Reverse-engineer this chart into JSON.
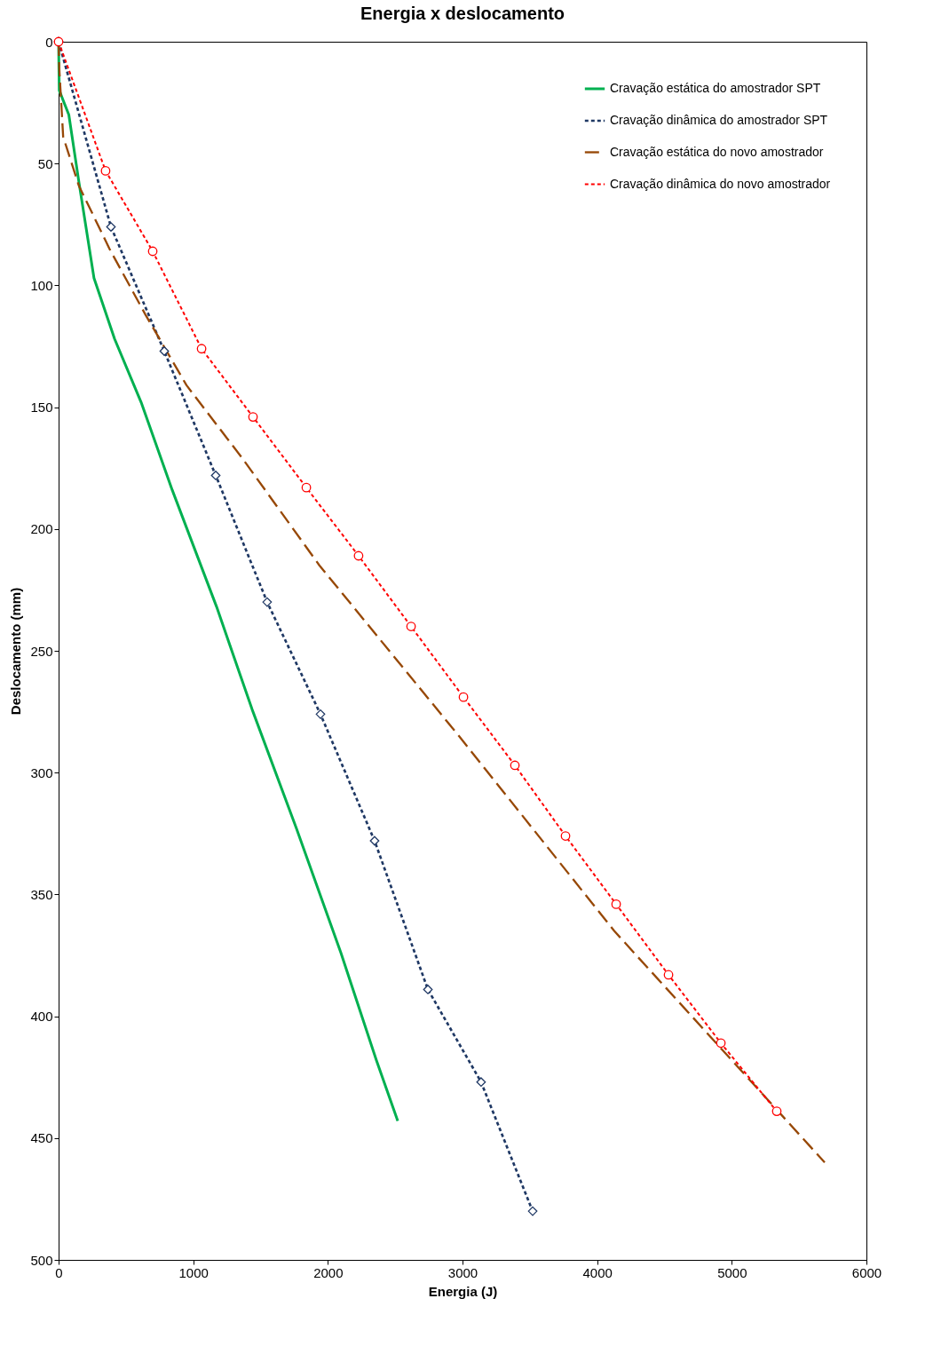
{
  "chart_data": {
    "type": "line",
    "title": "Energia x deslocamento",
    "xlabel": "Energia (J)",
    "ylabel": "Deslocamento (mm)",
    "xlim": [
      0,
      6000
    ],
    "xticks": [
      0,
      1000,
      2000,
      3000,
      4000,
      5000,
      6000
    ],
    "ylim": [
      500,
      0
    ],
    "yticks": [
      0,
      50,
      100,
      150,
      200,
      250,
      300,
      350,
      400,
      450,
      500
    ],
    "grid": false,
    "legend": "top right",
    "series": [
      {
        "name": "Cravação estática do amostrador SPT",
        "color": "#00b050",
        "marker": "none",
        "line_style": "solid",
        "x": [
          0,
          5,
          76,
          152,
          263,
          416,
          613,
          844,
          1174,
          1437,
          1767,
          2097,
          2360,
          2519
        ],
        "values": [
          0,
          20,
          30,
          58,
          97,
          122,
          148,
          184,
          232,
          274,
          323,
          374,
          418,
          443
        ]
      },
      {
        "name": "Cravação dinâmica do amostrador SPT",
        "color": "#1f3864",
        "marker": "diamond",
        "line_style": "dotted",
        "x": [
          0,
          389,
          785,
          1167,
          1549,
          1945,
          2347,
          2743,
          3138,
          3521
        ],
        "values": [
          0,
          76,
          127,
          178,
          230,
          276,
          328,
          389,
          427,
          480
        ]
      },
      {
        "name": "Cravação estática do novo amostrador",
        "color": "#974806",
        "marker": "none",
        "line_style": "dashed",
        "x": [
          0,
          5,
          34,
          150,
          378,
          645,
          950,
          1365,
          1938,
          2974,
          4127,
          5690
        ],
        "values": [
          0,
          11,
          39,
          59,
          85,
          112,
          141,
          171,
          215,
          285,
          365,
          460
        ]
      },
      {
        "name": "Cravação dinâmica do novo amostrador",
        "color": "#ff0000",
        "marker": "circle",
        "line_style": "dotted",
        "x": [
          0,
          349,
          699,
          1062,
          1444,
          1840,
          2228,
          2618,
          3007,
          3389,
          3765,
          4141,
          4530,
          4919,
          5334
        ],
        "values": [
          0,
          53,
          86,
          126,
          154,
          183,
          211,
          240,
          269,
          297,
          326,
          354,
          383,
          411,
          439
        ]
      }
    ]
  }
}
